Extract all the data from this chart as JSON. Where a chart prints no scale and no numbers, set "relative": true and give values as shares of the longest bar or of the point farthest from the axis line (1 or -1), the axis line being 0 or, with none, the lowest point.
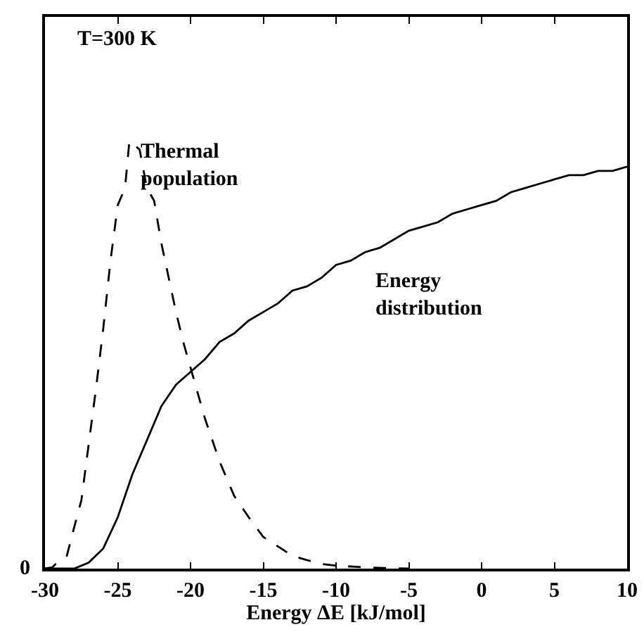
{
  "chart_data": {
    "type": "line",
    "relative": true,
    "xlabel": "Energy ΔE [kJ/mol]",
    "xlim": [
      -30,
      10
    ],
    "xticks": [
      -30,
      -25,
      -20,
      -15,
      -10,
      -5,
      0,
      5,
      10
    ],
    "annotations": [
      "T=300 K",
      "0"
    ],
    "grid": false,
    "legend": false,
    "series": [
      {
        "name": "Thermal population",
        "color": "#000000",
        "line_style": "dashed",
        "x": [
          -30,
          -29.5,
          -29,
          -28.5,
          -28,
          -27.5,
          -27,
          -26.5,
          -26,
          -25.5,
          -25,
          -24.5,
          -24.2,
          -23.5,
          -23,
          -22.5,
          -22,
          -21.5,
          -21,
          -20.5,
          -20,
          -19,
          -18,
          -17,
          -16,
          -15,
          -14,
          -13,
          -12,
          -11,
          -10,
          -8,
          -6,
          -5
        ],
        "values": [
          0,
          0.003,
          0.02,
          0.03,
          0.096,
          0.16,
          0.29,
          0.42,
          0.56,
          0.72,
          0.85,
          0.89,
          1.0,
          0.98,
          0.89,
          0.86,
          0.76,
          0.68,
          0.6,
          0.53,
          0.47,
          0.35,
          0.25,
          0.17,
          0.12,
          0.074,
          0.052,
          0.03,
          0.02,
          0.011,
          0.007,
          0.003,
          0.001,
          0
        ]
      },
      {
        "name": "Energy distribution",
        "color": "#000000",
        "line_style": "solid",
        "x": [
          -30,
          -28,
          -27,
          -26,
          -25,
          -24,
          -23,
          -22,
          -21,
          -20,
          -19,
          -18,
          -17,
          -16,
          -15,
          -14,
          -13,
          -12,
          -11,
          -10,
          -9,
          -8,
          -7,
          -6,
          -5,
          -4,
          -3,
          -2,
          -1,
          0,
          1,
          2,
          3,
          4,
          5,
          6,
          7,
          8,
          9,
          10
        ],
        "values": [
          0,
          0,
          0.014,
          0.047,
          0.12,
          0.22,
          0.3,
          0.38,
          0.43,
          0.46,
          0.49,
          0.53,
          0.55,
          0.58,
          0.6,
          0.62,
          0.65,
          0.66,
          0.68,
          0.71,
          0.72,
          0.74,
          0.75,
          0.77,
          0.79,
          0.8,
          0.81,
          0.83,
          0.84,
          0.85,
          0.86,
          0.88,
          0.89,
          0.9,
          0.91,
          0.92,
          0.92,
          0.93,
          0.93,
          0.94
        ]
      }
    ]
  }
}
